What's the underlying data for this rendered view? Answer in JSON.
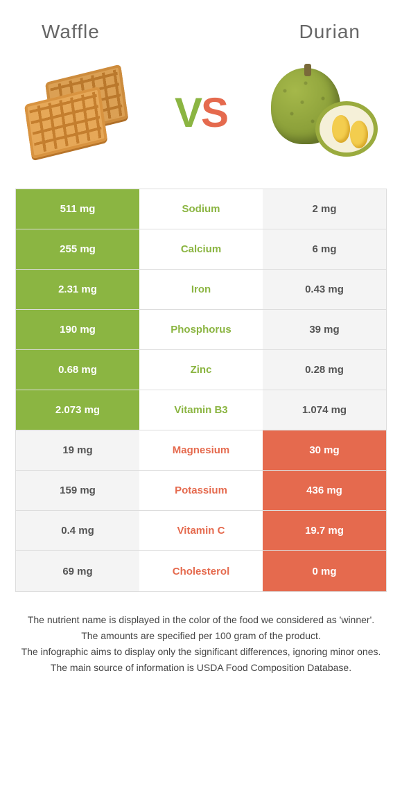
{
  "colors": {
    "left": "#8bb542",
    "right": "#e56a4e",
    "loser_bg": "#f4f4f4",
    "loser_text": "#555555"
  },
  "header": {
    "left_title": "Waffle",
    "right_title": "Durian",
    "vs_v": "V",
    "vs_s": "S"
  },
  "rows": [
    {
      "label": "Sodium",
      "left": "511 mg",
      "right": "2 mg",
      "winner": "left"
    },
    {
      "label": "Calcium",
      "left": "255 mg",
      "right": "6 mg",
      "winner": "left"
    },
    {
      "label": "Iron",
      "left": "2.31 mg",
      "right": "0.43 mg",
      "winner": "left"
    },
    {
      "label": "Phosphorus",
      "left": "190 mg",
      "right": "39 mg",
      "winner": "left"
    },
    {
      "label": "Zinc",
      "left": "0.68 mg",
      "right": "0.28 mg",
      "winner": "left"
    },
    {
      "label": "Vitamin B3",
      "left": "2.073 mg",
      "right": "1.074 mg",
      "winner": "left"
    },
    {
      "label": "Magnesium",
      "left": "19 mg",
      "right": "30 mg",
      "winner": "right"
    },
    {
      "label": "Potassium",
      "left": "159 mg",
      "right": "436 mg",
      "winner": "right"
    },
    {
      "label": "Vitamin C",
      "left": "0.4 mg",
      "right": "19.7 mg",
      "winner": "right"
    },
    {
      "label": "Cholesterol",
      "left": "69 mg",
      "right": "0 mg",
      "winner": "right"
    }
  ],
  "footnotes": [
    "The nutrient name is displayed in the color of the food we considered as 'winner'.",
    "The amounts are specified per 100 gram of the product.",
    "The infographic aims to display only the significant differences, ignoring minor ones.",
    "The main source of information is USDA Food Composition Database."
  ]
}
